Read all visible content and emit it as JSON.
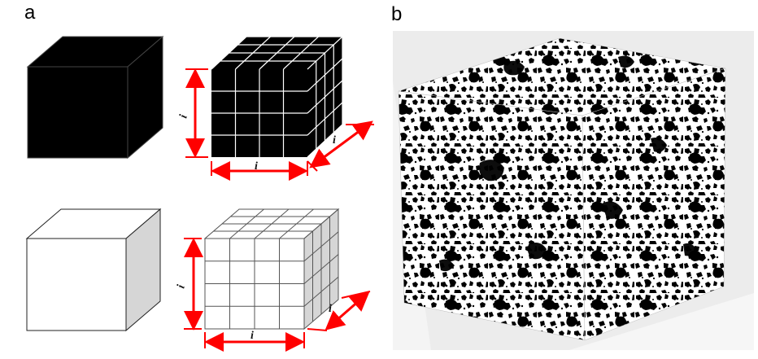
{
  "panels": {
    "a": {
      "label": "a"
    },
    "b": {
      "label": "b"
    }
  },
  "dimension_labels": {
    "height": "i",
    "width": "i",
    "depth": "i"
  },
  "colors": {
    "black_cube": "#000000",
    "white_cube": "#ffffff",
    "gray_side": "#d6d6d6",
    "dimension_arrow": "#ff0000",
    "grid_line_on_black": "#ffffff",
    "grid_line_on_white": "#555555"
  }
}
